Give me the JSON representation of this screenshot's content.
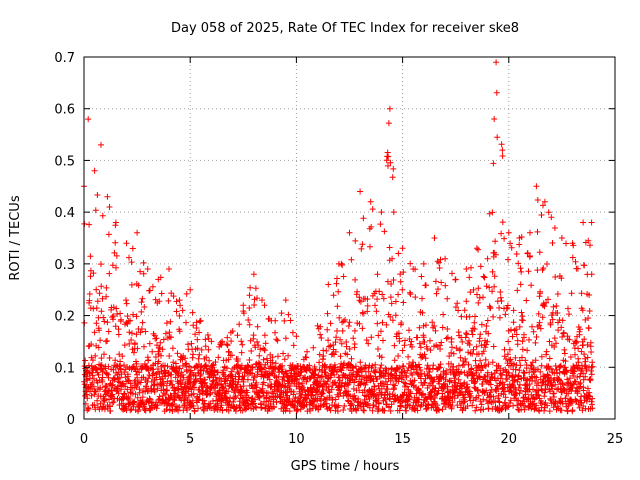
{
  "chart_data": {
    "type": "scatter",
    "title": "Day 058 of 2025, Rate Of TEC Index for receiver ske8",
    "xlabel": "GPS time / hours",
    "ylabel": "ROTI / TECUs",
    "xlim": [
      0,
      25
    ],
    "ylim": [
      0,
      0.7
    ],
    "x_ticks": [
      "0",
      "5",
      "10",
      "15",
      "20",
      "25"
    ],
    "y_ticks": [
      "0",
      "0.1",
      "0.2",
      "0.3",
      "0.4",
      "0.5",
      "0.6",
      "0.7"
    ],
    "grid": true,
    "marker": "+",
    "marker_color": "#ff0000",
    "series": [
      {
        "name": "ROTI",
        "description": "Dense point cloud, approx. one point every 30 s over 0-24 h; baseline ~0.02-0.15 TECU/min with upper envelope below",
        "envelope": [
          {
            "x": 0.0,
            "y": 0.45
          },
          {
            "x": 0.2,
            "y": 0.58
          },
          {
            "x": 0.5,
            "y": 0.48
          },
          {
            "x": 0.8,
            "y": 0.53
          },
          {
            "x": 1.2,
            "y": 0.41
          },
          {
            "x": 1.5,
            "y": 0.38
          },
          {
            "x": 2.0,
            "y": 0.34
          },
          {
            "x": 2.5,
            "y": 0.36
          },
          {
            "x": 3.0,
            "y": 0.29
          },
          {
            "x": 3.5,
            "y": 0.27
          },
          {
            "x": 4.0,
            "y": 0.29
          },
          {
            "x": 4.5,
            "y": 0.23
          },
          {
            "x": 5.0,
            "y": 0.25
          },
          {
            "x": 5.5,
            "y": 0.19
          },
          {
            "x": 6.0,
            "y": 0.15
          },
          {
            "x": 6.5,
            "y": 0.15
          },
          {
            "x": 7.0,
            "y": 0.17
          },
          {
            "x": 7.5,
            "y": 0.22
          },
          {
            "x": 8.0,
            "y": 0.28
          },
          {
            "x": 8.5,
            "y": 0.22
          },
          {
            "x": 9.0,
            "y": 0.19
          },
          {
            "x": 9.5,
            "y": 0.23
          },
          {
            "x": 10.0,
            "y": 0.16
          },
          {
            "x": 10.5,
            "y": 0.13
          },
          {
            "x": 11.0,
            "y": 0.18
          },
          {
            "x": 11.5,
            "y": 0.26
          },
          {
            "x": 12.0,
            "y": 0.3
          },
          {
            "x": 12.5,
            "y": 0.36
          },
          {
            "x": 13.0,
            "y": 0.44
          },
          {
            "x": 13.5,
            "y": 0.42
          },
          {
            "x": 14.0,
            "y": 0.4
          },
          {
            "x": 14.4,
            "y": 0.6
          },
          {
            "x": 14.8,
            "y": 0.32
          },
          {
            "x": 15.0,
            "y": 0.33
          },
          {
            "x": 15.5,
            "y": 0.29
          },
          {
            "x": 16.0,
            "y": 0.3
          },
          {
            "x": 16.5,
            "y": 0.35
          },
          {
            "x": 17.0,
            "y": 0.31
          },
          {
            "x": 17.5,
            "y": 0.27
          },
          {
            "x": 18.0,
            "y": 0.29
          },
          {
            "x": 18.5,
            "y": 0.33
          },
          {
            "x": 19.0,
            "y": 0.31
          },
          {
            "x": 19.4,
            "y": 0.69
          },
          {
            "x": 19.7,
            "y": 0.52
          },
          {
            "x": 20.0,
            "y": 0.36
          },
          {
            "x": 20.5,
            "y": 0.35
          },
          {
            "x": 21.0,
            "y": 0.36
          },
          {
            "x": 21.3,
            "y": 0.45
          },
          {
            "x": 21.7,
            "y": 0.42
          },
          {
            "x": 22.0,
            "y": 0.39
          },
          {
            "x": 22.5,
            "y": 0.35
          },
          {
            "x": 23.0,
            "y": 0.34
          },
          {
            "x": 23.5,
            "y": 0.38
          },
          {
            "x": 23.9,
            "y": 0.38
          }
        ]
      }
    ]
  }
}
